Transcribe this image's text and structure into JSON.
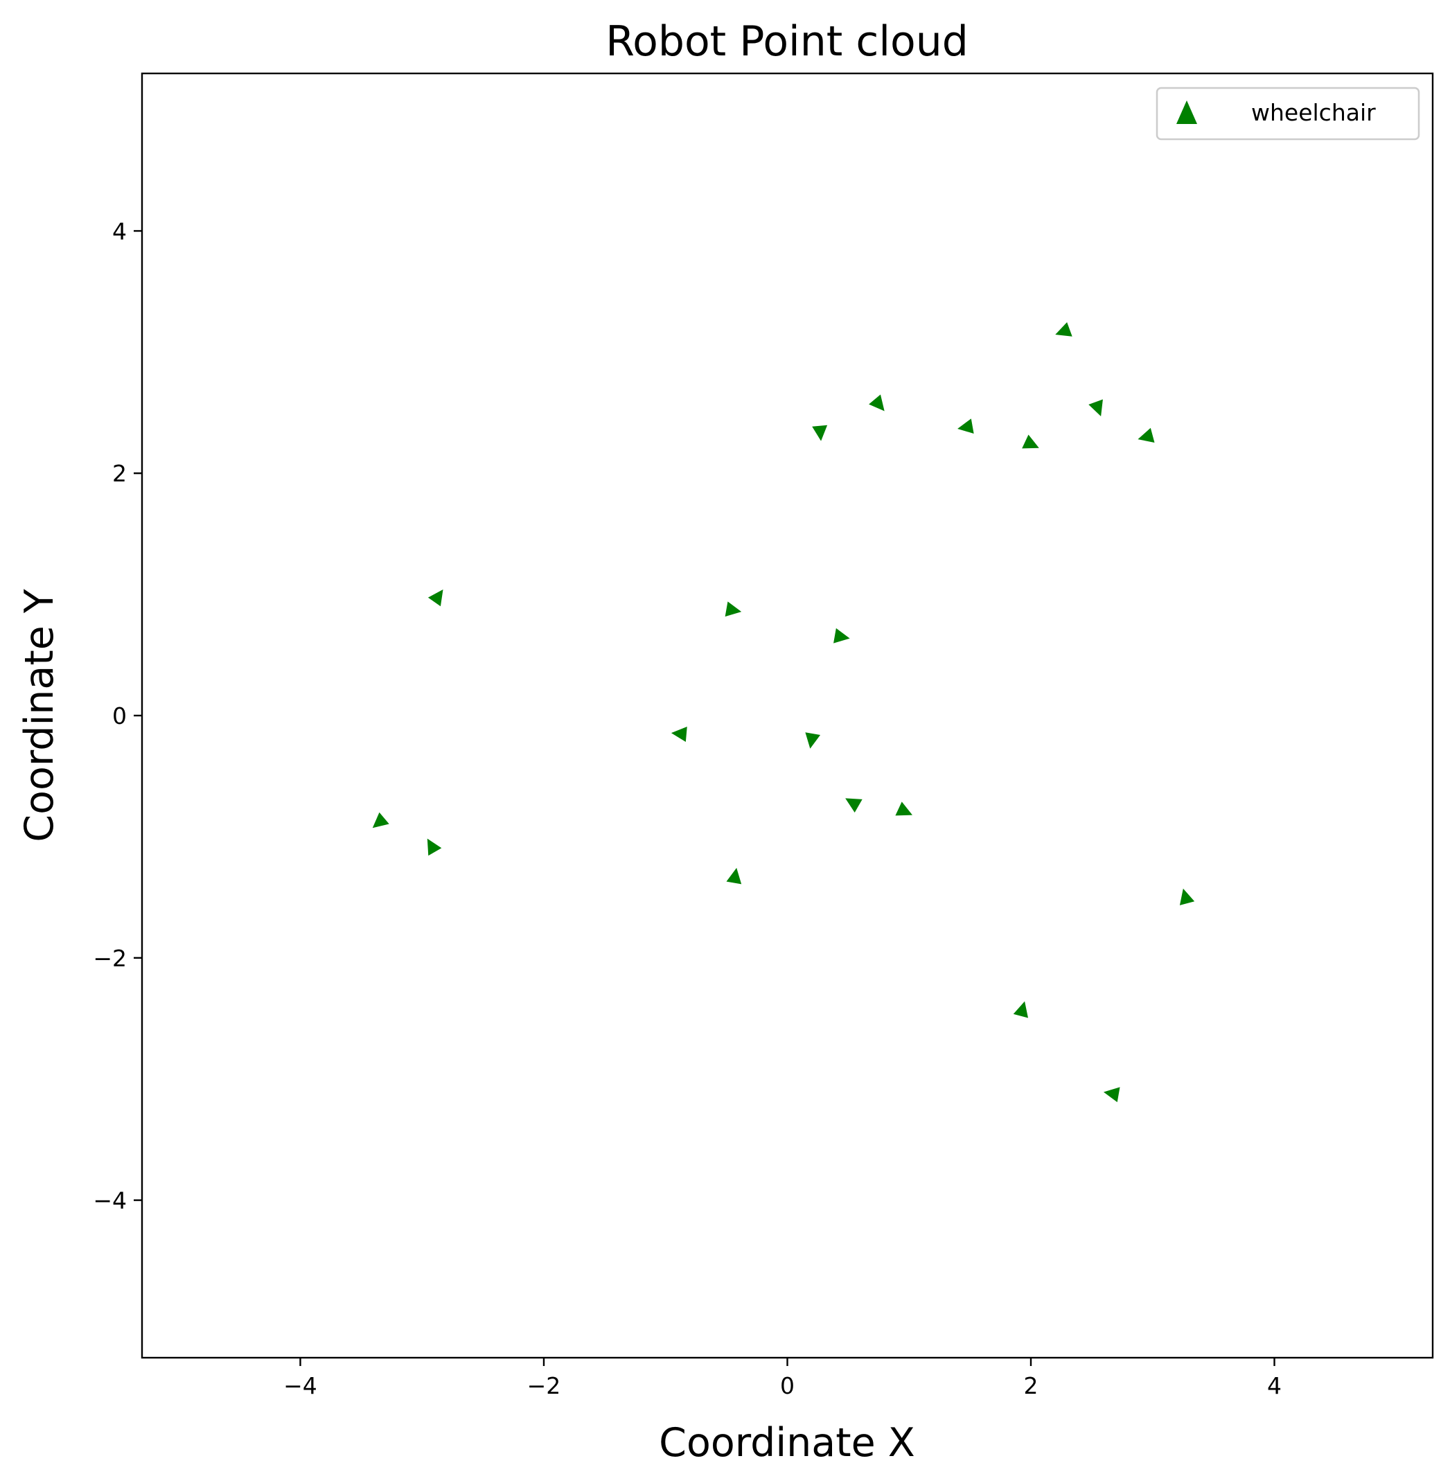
{
  "chart_data": {
    "type": "scatter",
    "title": "Robot Point cloud",
    "xlabel": "Coordinate X",
    "ylabel": "Coordinate Y",
    "xlim": [
      -5.3,
      5.3
    ],
    "ylim": [
      -5.3,
      5.3
    ],
    "x_ticks": [
      -4,
      -2,
      0,
      2,
      4
    ],
    "y_ticks": [
      -4,
      -2,
      0,
      2,
      4
    ],
    "x_tick_labels": [
      "−4",
      "−2",
      "0",
      "2",
      "4"
    ],
    "y_tick_labels": [
      "−4",
      "−2",
      "0",
      "2",
      "4"
    ],
    "grid": false,
    "legend_position": "upper right",
    "marker": "triangle",
    "color": "#008000",
    "series": [
      {
        "name": "wheelchair",
        "points": [
          {
            "x": 2.27,
            "y": 3.17,
            "rot": -110
          },
          {
            "x": 0.75,
            "y": 2.57,
            "rot": 140
          },
          {
            "x": 0.27,
            "y": 2.34,
            "rot": 175
          },
          {
            "x": 1.47,
            "y": 2.38,
            "rot": -100
          },
          {
            "x": 2.55,
            "y": 2.54,
            "rot": 160
          },
          {
            "x": 2.0,
            "y": 2.24,
            "rot": 115
          },
          {
            "x": 2.95,
            "y": 2.3,
            "rot": -105
          },
          {
            "x": -2.87,
            "y": 0.98,
            "rot": 35
          },
          {
            "x": -0.45,
            "y": 0.87,
            "rot": 100
          },
          {
            "x": 0.44,
            "y": 0.65,
            "rot": 100
          },
          {
            "x": -0.88,
            "y": -0.15,
            "rot": -85
          },
          {
            "x": 0.2,
            "y": -0.2,
            "rot": 190
          },
          {
            "x": 0.54,
            "y": -0.72,
            "rot": -60
          },
          {
            "x": 0.96,
            "y": -0.79,
            "rot": 115
          },
          {
            "x": -3.35,
            "y": -0.88,
            "rot": -130
          },
          {
            "x": -2.92,
            "y": -1.08,
            "rot": -30
          },
          {
            "x": -0.43,
            "y": -1.33,
            "rot": 10
          },
          {
            "x": 3.27,
            "y": -1.5,
            "rot": -15
          },
          {
            "x": 1.93,
            "y": -2.43,
            "rot": 15
          },
          {
            "x": 2.67,
            "y": -3.12,
            "rot": -80
          }
        ]
      }
    ]
  }
}
